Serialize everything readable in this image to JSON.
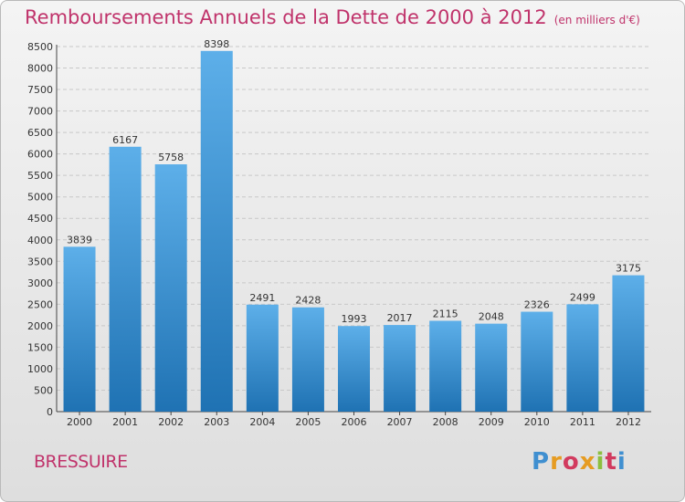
{
  "header": {
    "title": "Remboursements Annuels de la Dette de 2000 à 2012",
    "unit": "(en milliers d'€)"
  },
  "footer": {
    "place": "BRESSUIRE",
    "logo": "Proxiti"
  },
  "colors": {
    "title": "#c0336b",
    "bar_top": "#5dafe9",
    "bar_bottom": "#1f72b3"
  },
  "chart_data": {
    "type": "bar",
    "title": "Remboursements Annuels de la Dette de 2000 à 2012",
    "xlabel": "",
    "ylabel": "",
    "ylim": [
      0,
      8500
    ],
    "yticks": [
      0,
      500,
      1000,
      1500,
      2000,
      2500,
      3000,
      3500,
      4000,
      4500,
      5000,
      5500,
      6000,
      6500,
      7000,
      7500,
      8000,
      8500
    ],
    "grid": true,
    "categories": [
      "2000",
      "2001",
      "2002",
      "2003",
      "2004",
      "2005",
      "2006",
      "2007",
      "2008",
      "2009",
      "2010",
      "2011",
      "2012"
    ],
    "values": [
      3839,
      6167,
      5758,
      8398,
      2491,
      2428,
      1993,
      2017,
      2115,
      2048,
      2326,
      2499,
      3175
    ]
  }
}
